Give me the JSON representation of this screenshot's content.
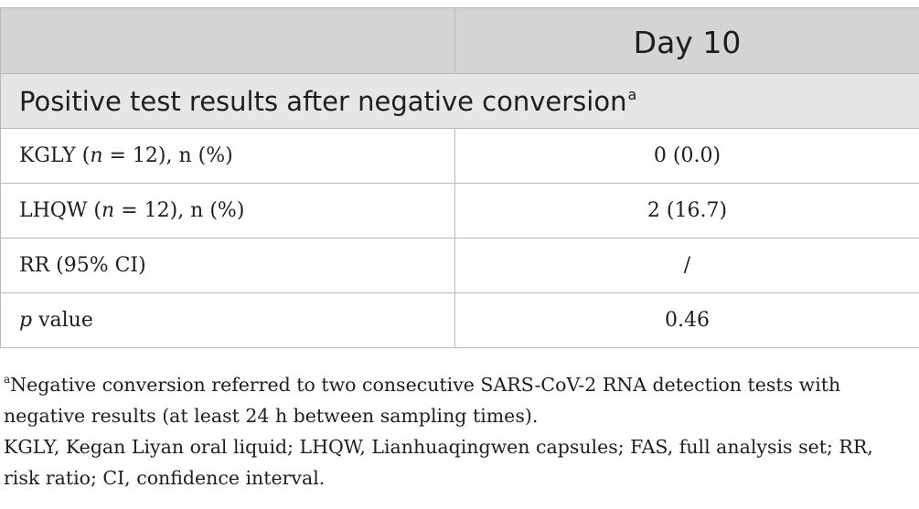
{
  "table": {
    "header": {
      "col1": "",
      "col2": "Day 10"
    },
    "section": {
      "title": "Positive test results after negative conversion",
      "marker": "a"
    },
    "rows": [
      {
        "pre": "KGLY (",
        "italic": "n",
        "post": " = 12), n (%)",
        "value": "0 (0.0)"
      },
      {
        "pre": "LHQW (",
        "italic": "n",
        "post": " = 12), n (%)",
        "value": "2 (16.7)"
      },
      {
        "pre": "RR (95% CI)",
        "italic": "",
        "post": "",
        "value": "/"
      },
      {
        "pre": "",
        "italic": "p",
        "post": " value",
        "value": "0.46"
      }
    ]
  },
  "footnotes": {
    "a_marker": "a",
    "a_text": "Negative conversion referred to two consecutive SARS-CoV-2 RNA detection tests with negative results (at least 24 h between sampling times).",
    "abbreviations": "KGLY, Kegan Liyan oral liquid; LHQW, Lianhuaqingwen capsules; FAS, full analysis set; RR, risk ratio; CI, confidence interval."
  }
}
